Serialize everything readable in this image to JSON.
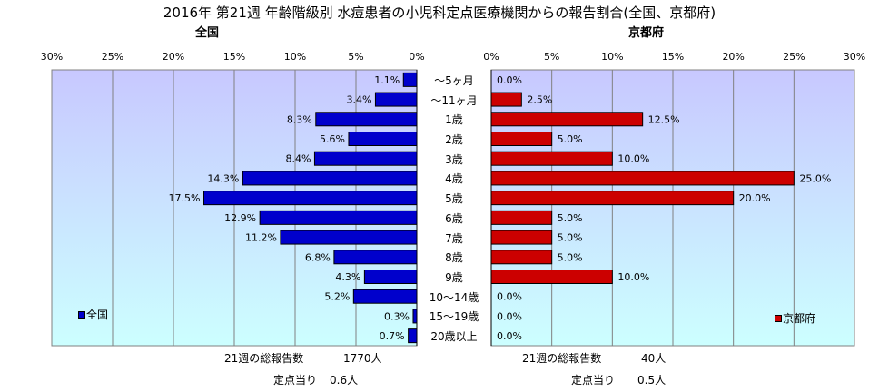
{
  "title": "2016年 第21週 年齢階級別 水痘患者の小児科定点医療機関からの報告割合(全国、京都府)",
  "colors": {
    "plot_bg": "#CCFFFF",
    "plot_bg_top": "#C8C8FF",
    "national": "#0000CC",
    "kyoto": "#CC0000",
    "grid": "#808080"
  },
  "chart_data": [
    {
      "type": "bar",
      "orientation": "horizontal-reversed",
      "title": "全国",
      "categories": [
        "～5ヶ月",
        "～11ヶ月",
        "1歳",
        "2歳",
        "3歳",
        "4歳",
        "5歳",
        "6歳",
        "7歳",
        "8歳",
        "9歳",
        "10～14歳",
        "15～19歳",
        "20歳以上"
      ],
      "series": [
        {
          "name": "全国",
          "values": [
            1.1,
            3.4,
            8.3,
            5.6,
            8.4,
            14.3,
            17.5,
            12.9,
            11.2,
            6.8,
            4.3,
            5.2,
            0.3,
            0.7
          ]
        }
      ],
      "value_labels": [
        "1.1%",
        "3.4%",
        "8.3%",
        "5.6%",
        "8.4%",
        "14.3%",
        "17.5%",
        "12.9%",
        "11.2%",
        "6.8%",
        "4.3%",
        "5.2%",
        "0.3%",
        "0.7%"
      ],
      "xlim": [
        0,
        30
      ],
      "ticks": [
        30,
        25,
        20,
        15,
        10,
        5,
        0
      ],
      "tick_labels": [
        "30%",
        "25%",
        "20%",
        "15%",
        "10%",
        "5%",
        "0%"
      ],
      "grid": true,
      "legend": "lower-left"
    },
    {
      "type": "bar",
      "orientation": "horizontal",
      "title": "京都府",
      "categories": [
        "～5ヶ月",
        "～11ヶ月",
        "1歳",
        "2歳",
        "3歳",
        "4歳",
        "5歳",
        "6歳",
        "7歳",
        "8歳",
        "9歳",
        "10～14歳",
        "15～19歳",
        "20歳以上"
      ],
      "series": [
        {
          "name": "京都府",
          "values": [
            0,
            2.5,
            12.5,
            5.0,
            10.0,
            25.0,
            20.0,
            5.0,
            5.0,
            5.0,
            10.0,
            0,
            0,
            0
          ]
        }
      ],
      "value_labels": [
        "0.0%",
        "2.5%",
        "12.5%",
        "5.0%",
        "10.0%",
        "25.0%",
        "20.0%",
        "5.0%",
        "5.0%",
        "5.0%",
        "10.0%",
        "0.0%",
        "0.0%",
        "0.0%"
      ],
      "xlim": [
        0,
        30
      ],
      "ticks": [
        0,
        5,
        10,
        15,
        20,
        25,
        30
      ],
      "tick_labels": [
        "0%",
        "5%",
        "10%",
        "15%",
        "20%",
        "25%",
        "30%"
      ],
      "grid": true,
      "legend": "lower-right"
    }
  ],
  "footer": {
    "national_total_label": "21週の総報告数",
    "national_total_value": "1770人",
    "national_per_label": "定点当り",
    "national_per_value": "0.6人",
    "kyoto_total_label": "21週の総報告数",
    "kyoto_total_value": "40人",
    "kyoto_per_label": "定点当り",
    "kyoto_per_value": "0.5人"
  }
}
